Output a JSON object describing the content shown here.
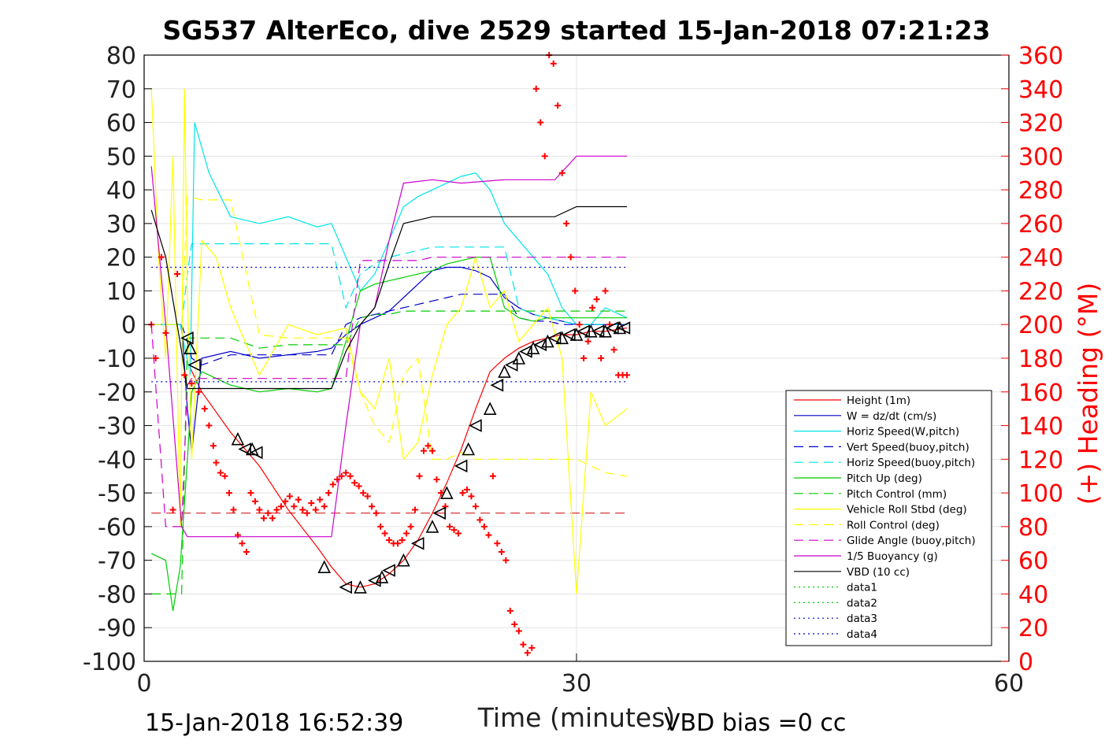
{
  "chart_data": {
    "type": "line",
    "title": "SG537 AlterEco, dive 2529 started 15-Jan-2018 07:21:23",
    "xlabel": "Time (minutes)",
    "ylabel_right": "(+) Heading (°M)",
    "xlim": [
      0,
      60
    ],
    "ylim": [
      -100,
      80
    ],
    "ylim_right": [
      0,
      360
    ],
    "x_ticks": [
      "0",
      "30",
      "60"
    ],
    "y_ticks": [
      "80",
      "70",
      "60",
      "50",
      "40",
      "30",
      "20",
      "10",
      "0",
      "-10",
      "-20",
      "-30",
      "-40",
      "-50",
      "-60",
      "-70",
      "-80",
      "-90",
      "-100"
    ],
    "y_right_ticks": [
      "360",
      "340",
      "320",
      "300",
      "280",
      "260",
      "240",
      "220",
      "200",
      "180",
      "160",
      "140",
      "120",
      "100",
      "80",
      "60",
      "40",
      "20",
      "0"
    ],
    "grid": true,
    "legend_position": "bottom-right",
    "footer_left": "15-Jan-2018 16:52:39",
    "footer_right": "VBD bias =0 cc",
    "series": [
      {
        "name": "Height (1m)",
        "color": "#ff0000",
        "style": "solid",
        "x": [
          3.1,
          4,
          6,
          8,
          10,
          12,
          13,
          14,
          15,
          16,
          17,
          18,
          19,
          20,
          21,
          22,
          23,
          24,
          25,
          26,
          27,
          28,
          29,
          30,
          31,
          32,
          33.5
        ],
        "y": [
          -12,
          -20,
          -32,
          -42,
          -55,
          -66,
          -72,
          -77,
          -78,
          -77,
          -74,
          -70,
          -64,
          -56,
          -47,
          -37,
          -25,
          -14,
          -10,
          -7,
          -5,
          -4,
          -3,
          -3,
          -2,
          -2,
          -1
        ]
      },
      {
        "name": "W = dz/dt (cm/s)",
        "color": "#0000cc",
        "style": "solid",
        "x": [
          0.5,
          1.5,
          2.6,
          3,
          3.3,
          4,
          6,
          8,
          10,
          12,
          13,
          14,
          15,
          16,
          17,
          18,
          19,
          20,
          21,
          22,
          23,
          24,
          25,
          26,
          27,
          28,
          29,
          30,
          31,
          32,
          33.5
        ],
        "y": [
          0,
          0,
          0,
          -25,
          -38,
          -10,
          -8,
          -10,
          -9,
          -8,
          -7,
          -3,
          0,
          2,
          4,
          8,
          12,
          16,
          17,
          17,
          16,
          14,
          8,
          5,
          3,
          2,
          1,
          0,
          0,
          0,
          0
        ]
      },
      {
        "name": "Horiz Speed(W,pitch)",
        "color": "#00e5e5",
        "style": "solid",
        "x": [
          0.5,
          1.5,
          2.5,
          3.2,
          3.5,
          4.5,
          6,
          8,
          10,
          12,
          13,
          14,
          15,
          16,
          17,
          18,
          19,
          20,
          21,
          22,
          23,
          24,
          25,
          26,
          27,
          28,
          29,
          30,
          31,
          32,
          33.5
        ],
        "y": [
          0,
          0,
          0,
          -15,
          60,
          45,
          32,
          30,
          32,
          29,
          30,
          20,
          10,
          15,
          25,
          35,
          38,
          40,
          42,
          44,
          45,
          40,
          30,
          25,
          20,
          15,
          5,
          0,
          0,
          5,
          2
        ]
      },
      {
        "name": "Vert Speed(buoy,pitch)",
        "color": "#0000cc",
        "style": "dashed",
        "x": [
          0.5,
          1.5,
          2.6,
          3,
          3.3,
          4,
          6,
          8,
          10,
          12,
          13,
          14,
          15,
          16,
          17,
          18,
          19,
          20,
          21,
          22,
          23,
          24,
          25,
          26,
          27,
          28,
          29,
          30,
          31,
          32,
          33.5
        ],
        "y": [
          0,
          0,
          0,
          -5,
          -10,
          -12,
          -9,
          -9,
          -9,
          -9,
          -9,
          0,
          2,
          3,
          4,
          5,
          6,
          7,
          8,
          9,
          9,
          9,
          9,
          2,
          1,
          1,
          0,
          0,
          0,
          0,
          0
        ]
      },
      {
        "name": "Horiz Speed(buoy,pitch)",
        "color": "#00e5e5",
        "style": "dashed",
        "x": [
          0.5,
          1.5,
          2.6,
          3,
          3.3,
          4,
          6,
          8,
          10,
          12,
          13,
          14,
          15,
          16,
          17,
          18,
          19,
          20,
          21,
          22,
          23,
          24,
          25,
          26,
          27,
          28,
          29,
          30,
          31,
          32,
          33.5
        ],
        "y": [
          0,
          0,
          0,
          15,
          24,
          24,
          24,
          24,
          24,
          24,
          24,
          5,
          15,
          18,
          20,
          21,
          22,
          23,
          23,
          23,
          23,
          23,
          23,
          5,
          3,
          2,
          1,
          0,
          0,
          0,
          0
        ]
      },
      {
        "name": "Pitch Up (deg)",
        "color": "#00cc00",
        "style": "solid",
        "x": [
          0.5,
          1.5,
          2,
          2.5,
          3,
          3.3,
          4,
          6,
          8,
          10,
          12,
          13,
          14,
          15,
          16,
          17,
          18,
          19,
          20,
          21,
          22,
          23,
          24,
          25,
          26,
          27,
          28,
          29,
          30,
          31,
          32,
          33.5
        ],
        "y": [
          -68,
          -70,
          -85,
          -72,
          -40,
          -20,
          -14,
          -18,
          -20,
          -19,
          -20,
          -19,
          -5,
          10,
          12,
          13,
          14,
          15,
          16,
          18,
          19,
          20,
          20,
          5,
          2,
          1,
          2,
          2,
          2,
          2,
          2,
          2
        ]
      },
      {
        "name": "Pitch Control (mm)",
        "color": "#00cc00",
        "style": "dashed",
        "x": [
          0.5,
          2.6,
          3,
          4,
          6,
          8,
          10,
          12,
          13,
          14,
          15,
          16,
          17,
          18,
          19,
          20,
          21,
          22,
          23,
          24,
          25,
          26,
          27,
          28,
          29,
          30,
          31,
          32,
          33.5
        ],
        "y": [
          -80,
          -80,
          -4,
          -4,
          -4,
          -7,
          -6,
          -6,
          -6,
          -6,
          2,
          3,
          3,
          4,
          4,
          4,
          4,
          4,
          4,
          4,
          4,
          4,
          4,
          4,
          4,
          4,
          4,
          4,
          4
        ]
      },
      {
        "name": "Vehicle Roll Stbd (deg)",
        "color": "#ffff00",
        "style": "solid",
        "x": [
          0.5,
          1,
          1.5,
          2,
          2.5,
          2.8,
          3,
          3.3,
          4,
          5,
          6,
          8,
          10,
          12,
          13,
          14,
          15,
          16,
          17,
          18,
          19,
          20,
          21,
          22,
          23,
          24,
          25,
          26,
          27,
          28,
          29,
          30,
          31,
          32,
          33.5
        ],
        "y": [
          70,
          20,
          -10,
          50,
          -60,
          70,
          10,
          -40,
          25,
          20,
          5,
          -15,
          0,
          -3,
          -2,
          -1,
          -20,
          -25,
          -10,
          -40,
          -35,
          -15,
          0,
          5,
          20,
          5,
          10,
          -5,
          0,
          5,
          -10,
          -80,
          -20,
          -30,
          -25
        ]
      },
      {
        "name": "Roll Control (deg)",
        "color": "#ffff00",
        "style": "dashed",
        "x": [
          0.5,
          2.6,
          3,
          4,
          6,
          8,
          10,
          12,
          13,
          14,
          15,
          16,
          17,
          18,
          19,
          20,
          21,
          22,
          23,
          24,
          25,
          26,
          27,
          28,
          29,
          30,
          31,
          32,
          33.5
        ],
        "y": [
          0,
          0,
          38,
          37,
          37,
          -3,
          -4,
          -4,
          -4,
          -4,
          -20,
          -30,
          -35,
          -15,
          -10,
          -40,
          -40,
          -38,
          -40,
          -40,
          -40,
          -40,
          -40,
          -40,
          -40,
          -40,
          -42,
          -44,
          -45
        ]
      },
      {
        "name": "Glide Angle (buoy,pitch)",
        "color": "#cc00cc",
        "style": "dashed",
        "x": [
          0.5,
          1.5,
          2.6,
          3,
          3.3,
          4,
          6,
          8,
          10,
          12,
          13,
          14,
          15,
          16,
          17,
          18,
          19,
          20,
          21,
          22,
          23,
          24,
          25,
          26,
          27,
          28,
          29,
          30,
          31,
          32,
          33.5
        ],
        "y": [
          0,
          -60,
          -60,
          -18,
          -16,
          -16,
          -16,
          -16,
          -16,
          -16,
          -16,
          -16,
          19,
          19,
          19,
          19,
          19,
          20,
          20,
          20,
          20,
          20,
          20,
          20,
          20,
          20,
          20,
          20,
          20,
          20,
          20
        ]
      },
      {
        "name": "1/5 Buoyancy (g)",
        "color": "#cc00cc",
        "style": "solid",
        "x": [
          0.5,
          1.5,
          2.6,
          3,
          4,
          8,
          12,
          13,
          14,
          15,
          16,
          17,
          18,
          20,
          22,
          25,
          27,
          28.5,
          30,
          33.5
        ],
        "y": [
          47,
          0,
          -60,
          -63,
          -63,
          -63,
          -63,
          -63,
          -30,
          0,
          5,
          25,
          42,
          43,
          42,
          43,
          43,
          43,
          50,
          50
        ]
      },
      {
        "name": "VBD (10 cc)",
        "color": "#000000",
        "style": "solid",
        "x": [
          0.5,
          1.5,
          2.6,
          3,
          4,
          8,
          12,
          13,
          14,
          15,
          16,
          17,
          18,
          20,
          22,
          25,
          27,
          28.5,
          30,
          33.5
        ],
        "y": [
          34,
          20,
          -8,
          -19,
          -19,
          -19,
          -19,
          -19,
          -8,
          0,
          5,
          18,
          30,
          32,
          32,
          32,
          32,
          32,
          35,
          35
        ]
      },
      {
        "name": "data1",
        "color": "#00cc00",
        "style": "dotted",
        "x": [],
        "y": []
      },
      {
        "name": "data2",
        "color": "#00cc00",
        "style": "dotted",
        "x": [],
        "y": []
      },
      {
        "name": "data3",
        "color": "#0000cc",
        "style": "dotted",
        "x": [
          0.5,
          33.5
        ],
        "y": [
          17,
          17
        ]
      },
      {
        "name": "data4",
        "color": "#0000cc",
        "style": "dotted",
        "x": [
          0.5,
          33.5
        ],
        "y": [
          -17,
          -17
        ]
      }
    ],
    "horizontal_reference": {
      "color": "#cc0000",
      "style": "dashed",
      "y": -56,
      "x": [
        0.5,
        33.5
      ]
    },
    "heading_points": {
      "marker": "+",
      "color": "#ff0000",
      "x": [
        0.5,
        0.8,
        1.2,
        1.5,
        2,
        2.3,
        2.8,
        3.3,
        3.8,
        4.2,
        4.5,
        4.8,
        5,
        5.3,
        5.6,
        5.9,
        6.2,
        6.5,
        6.8,
        7.1,
        7.4,
        7.7,
        8,
        8.3,
        8.6,
        8.9,
        9.2,
        9.5,
        9.8,
        10.1,
        10.4,
        10.7,
        11,
        11.3,
        11.6,
        11.9,
        12.2,
        12.5,
        12.8,
        13.1,
        13.4,
        13.7,
        14,
        14.3,
        14.6,
        14.9,
        15.2,
        15.5,
        15.8,
        16.1,
        16.4,
        16.7,
        17,
        17.3,
        17.6,
        17.9,
        18.2,
        18.5,
        18.8,
        19.1,
        19.4,
        19.7,
        20,
        20.3,
        20.6,
        20.9,
        21.2,
        21.5,
        21.8,
        22.1,
        22.4,
        22.7,
        23,
        23.3,
        23.6,
        23.9,
        24.2,
        24.5,
        24.8,
        25.1,
        25.4,
        25.7,
        26,
        26.3,
        26.6,
        26.9,
        27.2,
        27.5,
        27.8,
        28.1,
        28.4,
        28.7,
        29,
        29.3,
        29.6,
        29.9,
        30.2,
        30.5,
        30.8,
        31.1,
        31.4,
        31.7,
        32,
        32.3,
        32.6,
        32.9,
        33.2,
        33.5
      ],
      "y": [
        200,
        180,
        240,
        195,
        90,
        230,
        170,
        165,
        160,
        150,
        140,
        128,
        118,
        112,
        110,
        100,
        90,
        75,
        70,
        65,
        100,
        95,
        90,
        85,
        88,
        85,
        90,
        92,
        95,
        98,
        92,
        96,
        90,
        88,
        94,
        90,
        96,
        92,
        100,
        105,
        108,
        110,
        112,
        110,
        106,
        104,
        100,
        98,
        92,
        88,
        80,
        76,
        72,
        70,
        70,
        72,
        76,
        80,
        90,
        110,
        125,
        128,
        125,
        108,
        100,
        92,
        80,
        78,
        76,
        100,
        102,
        98,
        92,
        84,
        80,
        75,
        110,
        70,
        65,
        60,
        30,
        22,
        18,
        10,
        5,
        8,
        340,
        320,
        300,
        360,
        355,
        330,
        290,
        260,
        240,
        220,
        200,
        180,
        190,
        210,
        215,
        180,
        220,
        200,
        185,
        170,
        170,
        170
      ]
    },
    "observed_markers": {
      "color": "#000000",
      "x": [
        3,
        3.2,
        3.5,
        6.5,
        7,
        7.5,
        7.8,
        12.5,
        14,
        15,
        16,
        16.5,
        17,
        18,
        19,
        20,
        20.5,
        21,
        22,
        22.5,
        23,
        24,
        24.5,
        25,
        25.5,
        26,
        26.5,
        27,
        27.5,
        28,
        28.5,
        29,
        29.5,
        30,
        30.5,
        31,
        31.5,
        32,
        32.5,
        33,
        33.3
      ],
      "y": [
        -4,
        -7,
        -12,
        -34,
        -37,
        -37,
        -38,
        -72,
        -78,
        -78,
        -76,
        -75,
        -73,
        -70,
        -65,
        -60,
        -56,
        -50,
        -42,
        -37,
        -30,
        -25,
        -18,
        -14,
        -12,
        -10,
        -8,
        -7,
        -6,
        -5,
        -4,
        -4,
        -3,
        -3,
        -2,
        -2,
        -2,
        -2,
        -1,
        -1,
        -1
      ]
    }
  }
}
